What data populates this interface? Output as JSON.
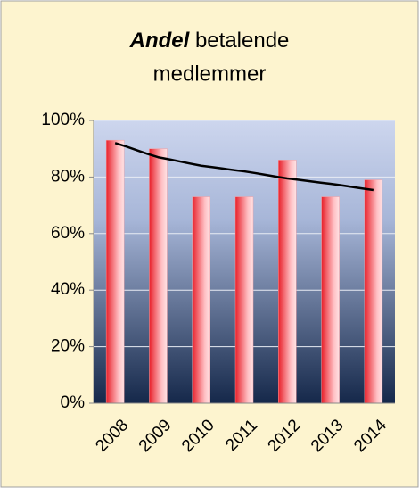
{
  "chart_data": {
    "type": "bar",
    "title": {
      "bold": "Andel",
      "line1": "betalende",
      "line2": "medlemmer"
    },
    "categories": [
      "2008",
      "2009",
      "2010",
      "2011",
      "2012",
      "2013",
      "2014"
    ],
    "values": [
      93,
      90,
      73,
      73,
      86,
      73,
      79
    ],
    "trendline": [
      92,
      87,
      84,
      82,
      79.5,
      77.6,
      75.4
    ],
    "color": "#e8202a",
    "trendline_color": "#000000",
    "ylim": [
      0,
      100
    ],
    "yticks": [
      {
        "value": 0,
        "label": "0%"
      },
      {
        "value": 20,
        "label": "20%"
      },
      {
        "value": 40,
        "label": "40%"
      },
      {
        "value": 60,
        "label": "60%"
      },
      {
        "value": 80,
        "label": "80%"
      },
      {
        "value": 100,
        "label": "100%"
      }
    ],
    "grid": true
  }
}
